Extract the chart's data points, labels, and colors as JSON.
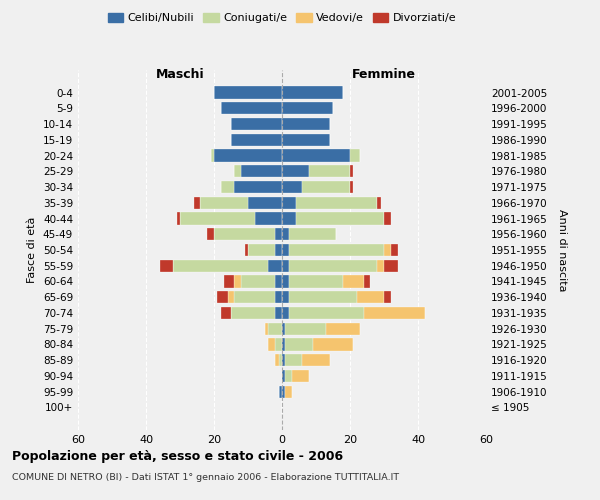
{
  "age_groups": [
    "100+",
    "95-99",
    "90-94",
    "85-89",
    "80-84",
    "75-79",
    "70-74",
    "65-69",
    "60-64",
    "55-59",
    "50-54",
    "45-49",
    "40-44",
    "35-39",
    "30-34",
    "25-29",
    "20-24",
    "15-19",
    "10-14",
    "5-9",
    "0-4"
  ],
  "birth_years": [
    "≤ 1905",
    "1906-1910",
    "1911-1915",
    "1916-1920",
    "1921-1925",
    "1926-1930",
    "1931-1935",
    "1936-1940",
    "1941-1945",
    "1946-1950",
    "1951-1955",
    "1956-1960",
    "1961-1965",
    "1966-1970",
    "1971-1975",
    "1976-1980",
    "1981-1985",
    "1986-1990",
    "1991-1995",
    "1996-2000",
    "2001-2005"
  ],
  "colors": {
    "celibi": "#3a6ea5",
    "coniugati": "#c5d9a0",
    "vedovi": "#f5c46e",
    "divorziati": "#c0392b"
  },
  "maschi": {
    "celibi": [
      0,
      1,
      0,
      0,
      0,
      0,
      2,
      2,
      2,
      4,
      2,
      2,
      8,
      10,
      14,
      12,
      20,
      15,
      15,
      18,
      20
    ],
    "coniugati": [
      0,
      0,
      0,
      1,
      2,
      4,
      13,
      12,
      10,
      28,
      8,
      18,
      22,
      14,
      4,
      2,
      1,
      0,
      0,
      0,
      0
    ],
    "vedovi": [
      0,
      0,
      0,
      1,
      2,
      1,
      0,
      2,
      2,
      0,
      0,
      0,
      0,
      0,
      0,
      0,
      0,
      0,
      0,
      0,
      0
    ],
    "divorziati": [
      0,
      0,
      0,
      0,
      0,
      0,
      3,
      3,
      3,
      4,
      1,
      2,
      1,
      2,
      0,
      0,
      0,
      0,
      0,
      0,
      0
    ]
  },
  "femmine": {
    "celibi": [
      0,
      1,
      1,
      1,
      1,
      1,
      2,
      2,
      2,
      2,
      2,
      2,
      4,
      4,
      6,
      8,
      20,
      14,
      14,
      15,
      18
    ],
    "coniugati": [
      0,
      0,
      2,
      5,
      8,
      12,
      22,
      20,
      16,
      26,
      28,
      14,
      26,
      24,
      14,
      12,
      3,
      0,
      0,
      0,
      0
    ],
    "vedovi": [
      0,
      2,
      5,
      8,
      12,
      10,
      18,
      8,
      6,
      2,
      2,
      0,
      0,
      0,
      0,
      0,
      0,
      0,
      0,
      0,
      0
    ],
    "divorziati": [
      0,
      0,
      0,
      0,
      0,
      0,
      0,
      2,
      2,
      4,
      2,
      0,
      2,
      1,
      1,
      1,
      0,
      0,
      0,
      0,
      0
    ]
  },
  "title": "Popolazione per età, sesso e stato civile - 2006",
  "subtitle": "COMUNE DI NETRO (BI) - Dati ISTAT 1° gennaio 2006 - Elaborazione TUTTITALIA.IT",
  "xlabel_left": "Maschi",
  "xlabel_right": "Femmine",
  "ylabel_left": "Fasce di età",
  "ylabel_right": "Anni di nascita",
  "xlim": 60,
  "xticks": [
    -60,
    -40,
    -20,
    0,
    20,
    40,
    60
  ],
  "xticklabels": [
    "60",
    "40",
    "20",
    "0",
    "20",
    "40",
    "60"
  ],
  "legend_labels": [
    "Celibi/Nubili",
    "Coniugati/e",
    "Vedovi/e",
    "Divorziati/e"
  ],
  "background_color": "#f0f0f0"
}
